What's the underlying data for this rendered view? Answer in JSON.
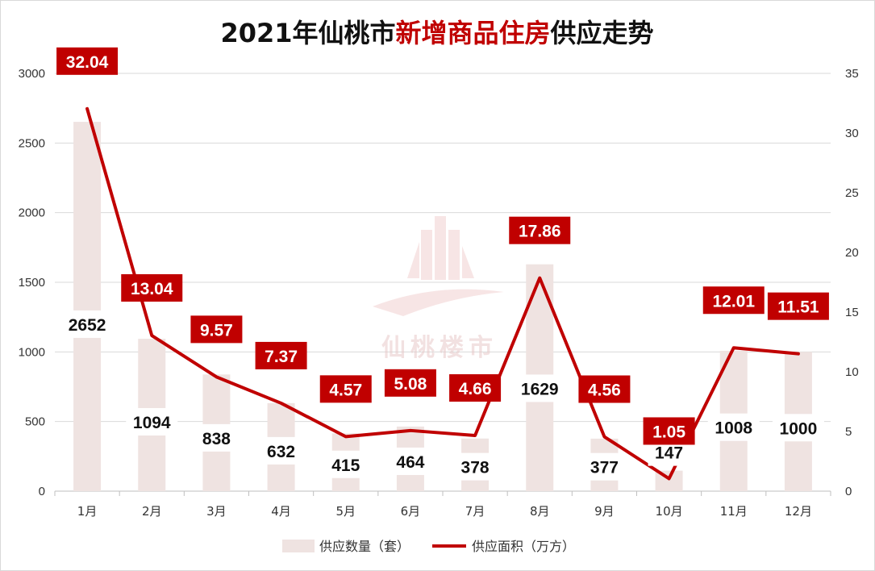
{
  "chart_data": {
    "type": "bar",
    "title": {
      "part1": "2021年仙桃市",
      "part2": "新增商品住房",
      "part3": "供应走势"
    },
    "categories": [
      "1月",
      "2月",
      "3月",
      "4月",
      "5月",
      "6月",
      "7月",
      "8月",
      "9月",
      "10月",
      "11月",
      "12月"
    ],
    "series": [
      {
        "name": "供应数量（套）",
        "type": "bar",
        "axis": "left",
        "values": [
          2652,
          1094,
          838,
          632,
          415,
          464,
          378,
          1629,
          377,
          147,
          1008,
          1000
        ]
      },
      {
        "name": "供应面积（万方）",
        "type": "line",
        "axis": "right",
        "values": [
          32.04,
          13.04,
          9.57,
          7.37,
          4.57,
          5.08,
          4.66,
          17.86,
          4.56,
          1.05,
          12.01,
          11.51
        ]
      }
    ],
    "left_axis": {
      "min": 0,
      "max": 3000,
      "ticks": [
        0,
        500,
        1000,
        1500,
        2000,
        2500,
        3000
      ]
    },
    "right_axis": {
      "min": 0,
      "max": 35,
      "ticks": [
        0,
        5,
        10,
        15,
        20,
        25,
        30,
        35
      ]
    },
    "grid": true,
    "legend_position": "bottom",
    "watermark": "仙桃楼市",
    "colors": {
      "bar": "#efe3e1",
      "line": "#c00000",
      "label_bg": "#c00000",
      "title_accent": "#c00000",
      "title_main": "#111111",
      "grid": "#d9d9d9"
    }
  }
}
